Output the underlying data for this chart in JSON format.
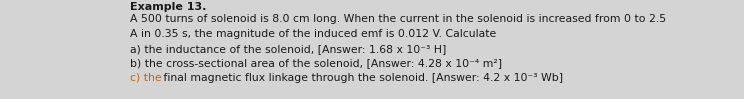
{
  "background_color": "#d4d4d4",
  "box_color": "#efefef",
  "title_partial": "Example 13.",
  "lines": [
    "A 500 turns of solenoid is 8.0 cm long. When the current in the solenoid is increased from 0 to 2.5",
    "A in 0.35 s, the magnitude of the induced emf is 0.012 V. Calculate",
    "a) the inductance of the solenoid, [Answer: 1.68 x 10⁻³ H]",
    "b) the cross-sectional area of the solenoid, [Answer: 4.28 x 10⁻⁴ m²]",
    "c) the final magnetic flux linkage through the solenoid. [Answer: 4.2 x 10⁻³ Wb]"
  ],
  "highlight_prefix": "c) the",
  "highlight_color": "#cc6600",
  "text_color": "#1a1a1a",
  "title_color": "#1a1a1a",
  "fontsize": 7.8,
  "title_fontsize": 8.0,
  "font_family": "DejaVu Sans"
}
